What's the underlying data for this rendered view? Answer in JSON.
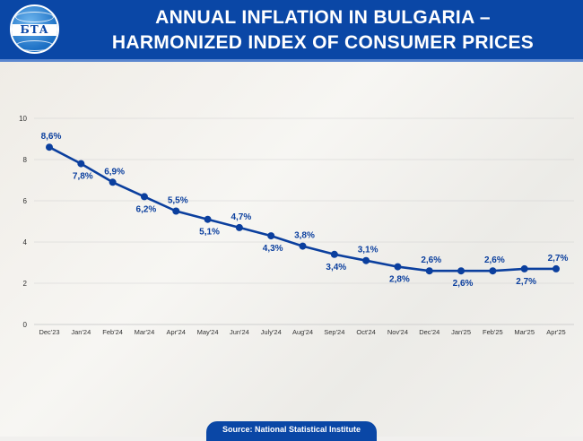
{
  "header": {
    "title_line1": "ANNUAL INFLATION IN BULGARIA –",
    "title_line2": "HARMONIZED INDEX OF CONSUMER PRICES",
    "logo_text": "БТА"
  },
  "footer": {
    "source": "Source: National Statistical Institute"
  },
  "colors": {
    "header": "#0a47a6",
    "line": "#0b3f9e",
    "label": "#0b3f9e",
    "grid": "#cfcfcf"
  },
  "chart_data": {
    "type": "line",
    "title": "ANNUAL INFLATION IN BULGARIA – HARMONIZED INDEX OF CONSUMER PRICES",
    "xlabel": "",
    "ylabel": "",
    "categories": [
      "Dec'23",
      "Jan'24",
      "Feb'24",
      "Mar'24",
      "Apr'24",
      "May'24",
      "Jun'24",
      "July'24",
      "Aug'24",
      "Sep'24",
      "Oct'24",
      "Nov'24",
      "Dec'24",
      "Jan'25",
      "Feb'25",
      "Mar'25",
      "Apr'25"
    ],
    "values": [
      8.6,
      7.8,
      6.9,
      6.2,
      5.5,
      5.1,
      4.7,
      4.3,
      3.8,
      3.4,
      3.1,
      2.8,
      2.6,
      2.6,
      2.6,
      2.7,
      2.7
    ],
    "data_labels": [
      "8,6%",
      "7,8%",
      "6,9%",
      "6,2%",
      "5,5%",
      "5,1%",
      "4,7%",
      "4,3%",
      "3,8%",
      "3,4%",
      "3,1%",
      "2,8%",
      "2,6%",
      "2,6%",
      "2,6%",
      "2,7%",
      "2,7%"
    ],
    "ylim": [
      0,
      10
    ],
    "yticks": [
      0,
      2,
      4,
      6,
      8,
      10
    ],
    "ytick_labels": [
      "0",
      "2",
      "4",
      "6",
      "8",
      "10"
    ],
    "grid": true,
    "legend": "none"
  }
}
